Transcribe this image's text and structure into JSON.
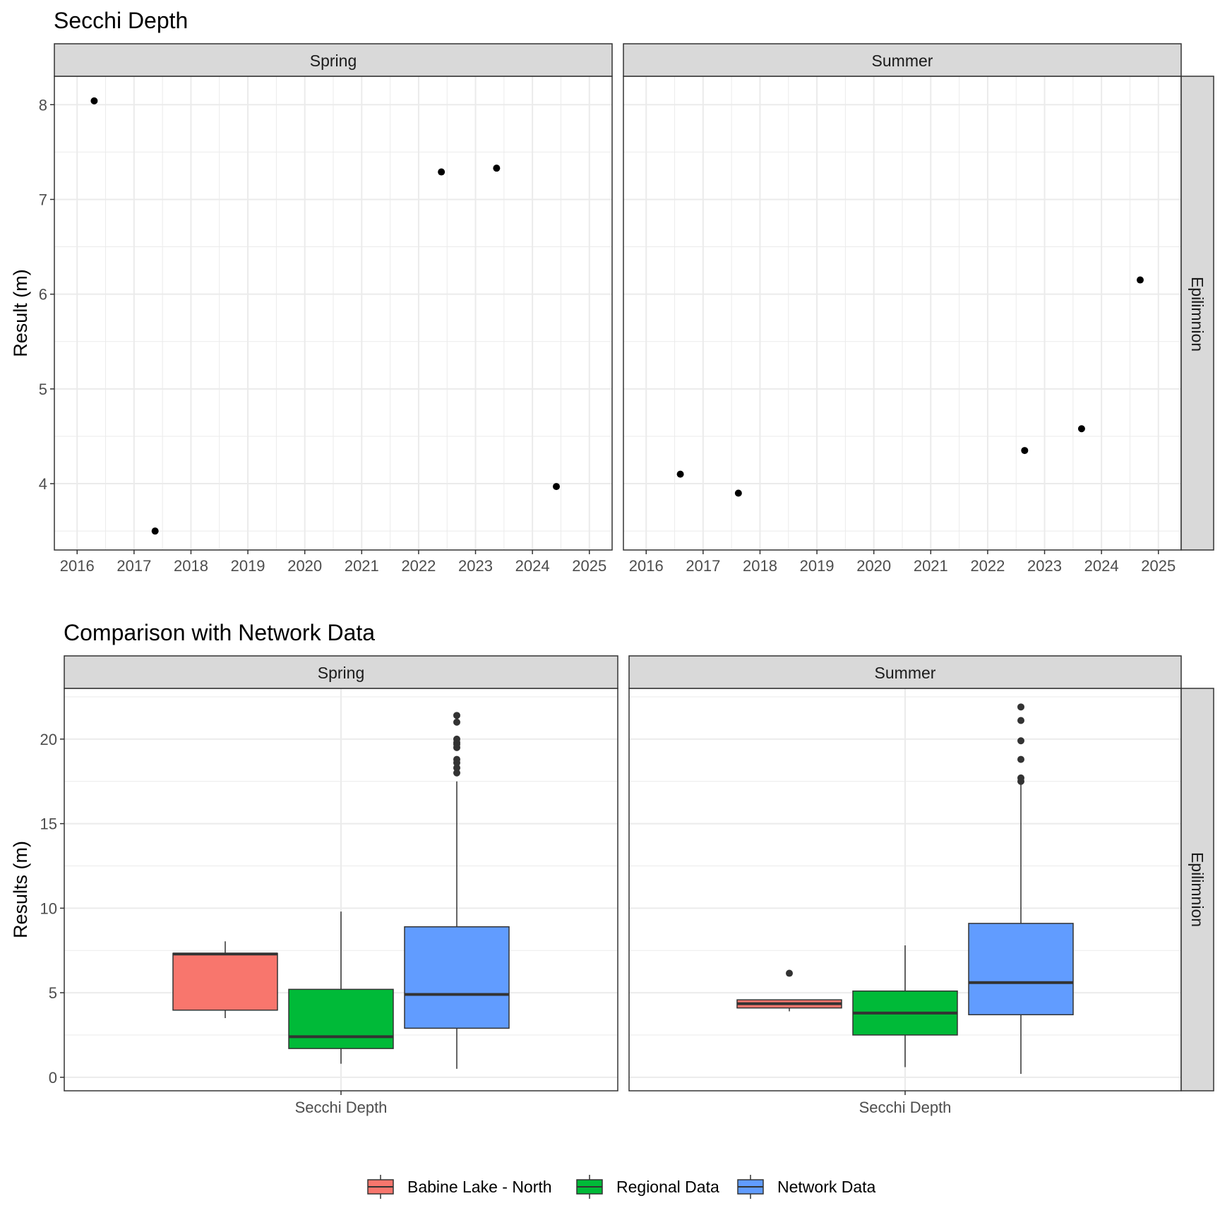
{
  "colors": {
    "babine": "#F8766D",
    "regional": "#00BA38",
    "network": "#619CFF",
    "strip_bg": "#D9D9D9",
    "grid": "#EBEBEB",
    "point": "#000000",
    "outlier": "#333333"
  },
  "chart_data": [
    {
      "type": "scatter",
      "title": "Secchi Depth",
      "ylabel": "Result (m)",
      "xlabel": "",
      "facet_columns": [
        "Spring",
        "Summer"
      ],
      "facet_row": "Epilimnion",
      "xlim": [
        2015.6,
        2025.4
      ],
      "ylim": [
        3.3,
        8.3
      ],
      "xticks": [
        2016,
        2017,
        2018,
        2019,
        2020,
        2021,
        2022,
        2023,
        2024,
        2025
      ],
      "yticks": [
        4,
        5,
        6,
        7,
        8
      ],
      "grid": true,
      "panels": [
        {
          "facet": "Spring",
          "points": [
            {
              "x": 2016.3,
              "y": 8.04
            },
            {
              "x": 2017.37,
              "y": 3.5
            },
            {
              "x": 2022.4,
              "y": 7.29
            },
            {
              "x": 2023.37,
              "y": 7.33
            },
            {
              "x": 2024.42,
              "y": 3.97
            }
          ]
        },
        {
          "facet": "Summer",
          "points": [
            {
              "x": 2016.6,
              "y": 4.1
            },
            {
              "x": 2017.62,
              "y": 3.9
            },
            {
              "x": 2022.65,
              "y": 4.35
            },
            {
              "x": 2023.65,
              "y": 4.58
            },
            {
              "x": 2024.68,
              "y": 6.15
            }
          ]
        }
      ]
    },
    {
      "type": "boxplot",
      "title": "Comparison with Network Data",
      "ylabel": "Results (m)",
      "xlabel": "",
      "category": "Secchi Depth",
      "facet_columns": [
        "Spring",
        "Summer"
      ],
      "facet_row": "Epilimnion",
      "ylim": [
        -0.8,
        23
      ],
      "yticks": [
        0,
        5,
        10,
        15,
        20
      ],
      "grid": true,
      "legend_position": "bottom",
      "legend": [
        "Babine Lake - North",
        "Regional Data",
        "Network Data"
      ],
      "panels": [
        {
          "facet": "Spring",
          "boxes": [
            {
              "series": "Babine Lake - North",
              "lower_whisker": 3.5,
              "q1": 3.97,
              "median": 7.29,
              "q3": 7.33,
              "upper_whisker": 8.04,
              "outliers": []
            },
            {
              "series": "Regional Data",
              "lower_whisker": 0.8,
              "q1": 1.7,
              "median": 2.4,
              "q3": 5.2,
              "upper_whisker": 9.8,
              "outliers": []
            },
            {
              "series": "Network Data",
              "lower_whisker": 0.5,
              "q1": 2.9,
              "median": 4.9,
              "q3": 8.9,
              "upper_whisker": 17.5,
              "outliers": [
                18.0,
                18.3,
                18.6,
                18.8,
                19.5,
                19.7,
                19.8,
                20.0,
                21.0,
                21.4
              ]
            }
          ]
        },
        {
          "facet": "Summer",
          "boxes": [
            {
              "series": "Babine Lake - North",
              "lower_whisker": 3.9,
              "q1": 4.1,
              "median": 4.35,
              "q3": 4.58,
              "upper_whisker": 4.58,
              "outliers": [
                6.15
              ]
            },
            {
              "series": "Regional Data",
              "lower_whisker": 0.6,
              "q1": 2.5,
              "median": 3.8,
              "q3": 5.1,
              "upper_whisker": 7.8,
              "outliers": []
            },
            {
              "series": "Network Data",
              "lower_whisker": 0.2,
              "q1": 3.7,
              "median": 5.6,
              "q3": 9.1,
              "upper_whisker": 17.3,
              "outliers": [
                17.5,
                17.7,
                18.8,
                19.9,
                21.1,
                21.9
              ]
            }
          ]
        }
      ]
    }
  ]
}
